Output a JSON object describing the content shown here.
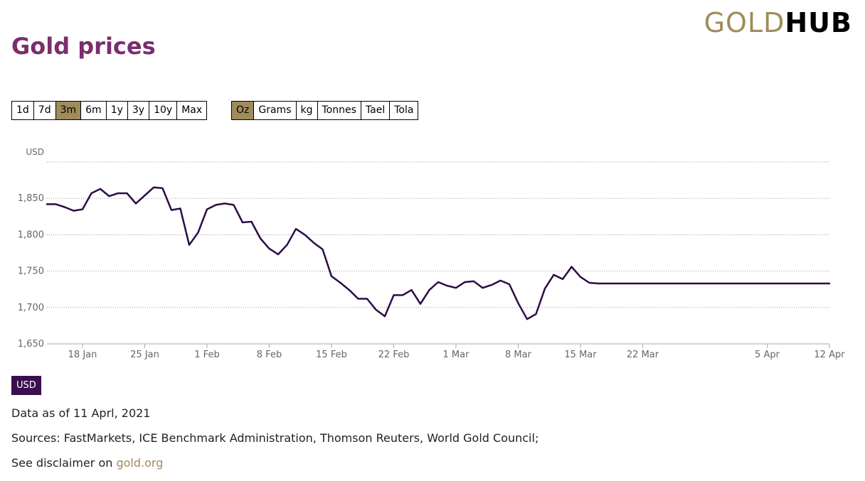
{
  "header": {
    "title": "Gold prices"
  },
  "logo": {
    "gold_text": "GOLD",
    "hub_text": "HUB"
  },
  "range_buttons": [
    {
      "label": "1d"
    },
    {
      "label": "7d"
    },
    {
      "label": "3m",
      "active": true
    },
    {
      "label": "6m"
    },
    {
      "label": "1y"
    },
    {
      "label": "3y"
    },
    {
      "label": "10y"
    },
    {
      "label": "Max"
    }
  ],
  "unit_buttons": [
    {
      "label": "Oz",
      "active": true
    },
    {
      "label": "Grams"
    },
    {
      "label": "kg"
    },
    {
      "label": "Tonnes"
    },
    {
      "label": "Tael"
    },
    {
      "label": "Tola"
    }
  ],
  "currency_badge": "USD",
  "footer": {
    "data_as_of": "Data as of 11 Aprl, 2021",
    "sources": "Sources: FastMarkets, ICE Benchmark Administration, Thomson Reuters, World Gold Council;",
    "disclaimer_prefix": "See disclaimer on ",
    "disclaimer_link": "gold.org"
  },
  "colors": {
    "line": "#2d0d45",
    "title": "#7a2e6e",
    "accent": "#a08c5b",
    "badge": "#3a0f4d"
  },
  "chart_data": {
    "type": "line",
    "ylabel": "USD",
    "ylim": [
      1650,
      1900
    ],
    "yticks": [
      1650,
      1700,
      1750,
      1800,
      1850
    ],
    "ytick_labels": [
      "1,650",
      "1,700",
      "1,750",
      "1,800",
      "1,850"
    ],
    "xlim": [
      "2021-01-14",
      "2021-04-12"
    ],
    "xticks": [
      {
        "label": "18 Jan",
        "date": "2021-01-18"
      },
      {
        "label": "25 Jan",
        "date": "2021-01-25"
      },
      {
        "label": "1 Feb",
        "date": "2021-02-01"
      },
      {
        "label": "8 Feb",
        "date": "2021-02-08"
      },
      {
        "label": "15 Feb",
        "date": "2021-02-15"
      },
      {
        "label": "22 Feb",
        "date": "2021-02-22"
      },
      {
        "label": "1 Mar",
        "date": "2021-03-01"
      },
      {
        "label": "8 Mar",
        "date": "2021-03-08"
      },
      {
        "label": "15 Mar",
        "date": "2021-03-15"
      },
      {
        "label": "22 Mar",
        "date": "2021-03-22"
      },
      {
        "label": "5 Apr",
        "date": "2021-04-05"
      },
      {
        "label": "12 Apr",
        "date": "2021-04-12"
      }
    ],
    "grid": true,
    "series": [
      {
        "x": [
          "2021-01-14",
          "2021-01-15",
          "2021-01-16",
          "2021-01-17",
          "2021-01-18",
          "2021-01-19",
          "2021-01-20",
          "2021-01-21",
          "2021-01-22",
          "2021-01-23",
          "2021-01-24",
          "2021-01-25",
          "2021-01-26",
          "2021-01-27",
          "2021-01-28",
          "2021-01-29",
          "2021-01-30",
          "2021-01-31",
          "2021-02-01",
          "2021-02-02",
          "2021-02-03",
          "2021-02-04",
          "2021-02-05",
          "2021-02-06",
          "2021-02-07",
          "2021-02-08",
          "2021-02-09",
          "2021-02-10",
          "2021-02-11",
          "2021-02-12",
          "2021-02-13",
          "2021-02-14",
          "2021-02-15",
          "2021-02-16",
          "2021-02-17",
          "2021-02-18",
          "2021-02-19",
          "2021-02-20",
          "2021-02-21",
          "2021-02-22",
          "2021-02-23",
          "2021-02-24",
          "2021-02-25",
          "2021-02-26",
          "2021-02-27",
          "2021-02-28",
          "2021-03-01",
          "2021-03-02",
          "2021-03-03",
          "2021-03-04",
          "2021-03-05",
          "2021-03-06",
          "2021-03-07",
          "2021-03-08",
          "2021-03-09",
          "2021-03-10",
          "2021-03-11",
          "2021-03-12",
          "2021-03-13",
          "2021-03-14",
          "2021-03-15",
          "2021-03-16",
          "2021-03-17",
          "2021-03-18",
          "2021-03-19",
          "2021-03-20",
          "2021-03-21",
          "2021-03-22",
          "2021-03-23",
          "2021-03-24",
          "2021-03-25",
          "2021-03-26",
          "2021-03-27",
          "2021-03-28",
          "2021-03-29",
          "2021-03-30",
          "2021-03-31",
          "2021-04-01",
          "2021-04-02",
          "2021-04-03",
          "2021-04-04",
          "2021-04-05",
          "2021-04-06",
          "2021-04-07",
          "2021-04-08",
          "2021-04-09",
          "2021-04-10",
          "2021-04-11",
          "2021-04-12"
        ],
        "y": [
          1842,
          1842,
          1838,
          1833,
          1835,
          1857,
          1863,
          1853,
          1857,
          1857,
          1843,
          1854,
          1865,
          1864,
          1834,
          1836,
          1786,
          1803,
          1835,
          1841,
          1843,
          1841,
          1817,
          1818,
          1795,
          1781,
          1773,
          1786,
          1808,
          1800,
          1789,
          1780,
          1743,
          1734,
          1724,
          1712,
          1712,
          1697,
          1688,
          1717,
          1717,
          1724,
          1705,
          1724,
          1735,
          1730,
          1727,
          1735,
          1736,
          1727,
          1731,
          1737,
          1732,
          1706,
          1684,
          1691,
          1726,
          1745,
          1739,
          1756,
          1742,
          1734,
          1733,
          1733,
          1733,
          1733,
          1733,
          1733,
          1733,
          1733,
          1733,
          1733,
          1733,
          1733,
          1733,
          1733,
          1733,
          1733,
          1733,
          1733,
          1733,
          1733,
          1733,
          1733,
          1733,
          1733,
          1733,
          1733,
          1733
        ]
      }
    ]
  }
}
